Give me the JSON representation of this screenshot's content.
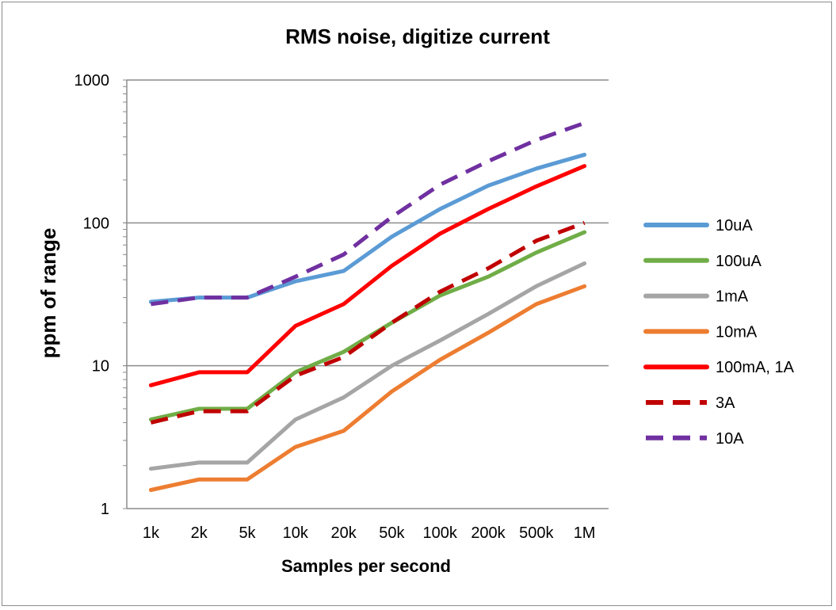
{
  "chart_data": {
    "type": "line",
    "title": "RMS noise, digitize current",
    "xlabel": "Samples per second",
    "ylabel": "ppm of range",
    "y_scale": "log",
    "ylim": [
      1,
      1000
    ],
    "y_ticks": [
      "1",
      "10",
      "100",
      "1000"
    ],
    "categories": [
      "1k",
      "2k",
      "5k",
      "10k",
      "20k",
      "50k",
      "100k",
      "200k",
      "500k",
      "1M"
    ],
    "grid": "horizontal major",
    "legend_position": "right",
    "series": [
      {
        "name": "10uA",
        "color": "#5b9bd5",
        "dash": false,
        "values": [
          28,
          30,
          30,
          39,
          46,
          80,
          125,
          182,
          240,
          300
        ]
      },
      {
        "name": "100uA",
        "color": "#70ad47",
        "dash": false,
        "values": [
          4.2,
          5.0,
          5.0,
          9.0,
          12.5,
          20,
          31,
          42,
          62,
          86
        ]
      },
      {
        "name": "1mA",
        "color": "#a5a5a5",
        "dash": false,
        "values": [
          1.9,
          2.1,
          2.1,
          4.2,
          6.0,
          10,
          15,
          23,
          36,
          52
        ]
      },
      {
        "name": "10mA",
        "color": "#ed7d31",
        "dash": false,
        "values": [
          1.35,
          1.6,
          1.6,
          2.7,
          3.5,
          6.6,
          11,
          17,
          27,
          36
        ]
      },
      {
        "name": "100mA, 1A",
        "color": "#ff0000",
        "dash": false,
        "values": [
          7.3,
          9.0,
          9.0,
          19,
          27,
          50,
          84,
          125,
          180,
          250
        ]
      },
      {
        "name": "3A",
        "color": "#c00000",
        "dash": true,
        "values": [
          4.0,
          4.8,
          4.8,
          8.5,
          11.5,
          20,
          33,
          48,
          75,
          100
        ]
      },
      {
        "name": "10A",
        "color": "#7030a0",
        "dash": true,
        "values": [
          27,
          30,
          30,
          42,
          60,
          110,
          185,
          270,
          380,
          500
        ]
      }
    ]
  }
}
